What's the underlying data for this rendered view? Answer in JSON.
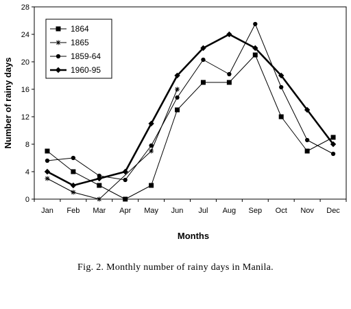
{
  "caption": "Fig. 2. Monthly number of rainy days in Manila.",
  "chart_data": {
    "type": "line",
    "title": "",
    "xlabel": "Months",
    "ylabel": "Number of rainy days",
    "ylim": [
      0,
      28
    ],
    "yticks": [
      0,
      4,
      8,
      12,
      16,
      20,
      24,
      28
    ],
    "grid": false,
    "legend_placement": "top-left",
    "categories": [
      "Jan",
      "Feb",
      "Mar",
      "Apr",
      "May",
      "Jun",
      "Jul",
      "Aug",
      "Sep",
      "Oct",
      "Nov",
      "Dec"
    ],
    "series": [
      {
        "name": "1864",
        "marker": "square",
        "line": "thin",
        "values": [
          7,
          4,
          2,
          0,
          2,
          13,
          17,
          17,
          21,
          12,
          7,
          9
        ]
      },
      {
        "name": "1865",
        "marker": "star",
        "line": "thin",
        "values": [
          3,
          1,
          0,
          null,
          7,
          16,
          null,
          null,
          null,
          null,
          null,
          null
        ]
      },
      {
        "name": "1859-64",
        "marker": "circle",
        "line": "thin",
        "values": [
          5.6,
          6,
          3.4,
          2.8,
          7.8,
          14.8,
          20.3,
          18.2,
          25.5,
          16.3,
          8.6,
          6.6
        ]
      },
      {
        "name": "1960-95",
        "marker": "diamond",
        "line": "thick",
        "values": [
          4,
          2,
          3,
          4,
          11,
          18,
          22,
          24,
          22,
          18,
          13,
          8
        ]
      }
    ]
  }
}
